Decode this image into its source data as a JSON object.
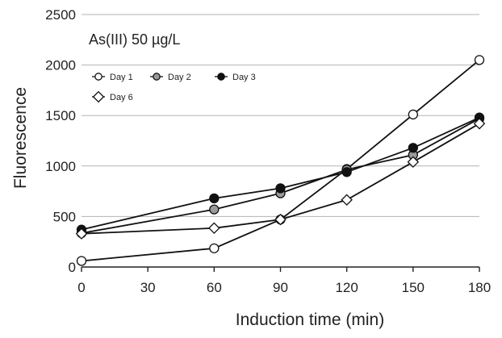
{
  "chart_data": {
    "type": "line",
    "title": "",
    "annotation": "As(III) 50 µg/L",
    "xlabel": "Induction time (min)",
    "ylabel": "Fluorescence",
    "xlim": [
      0,
      180
    ],
    "ylim": [
      0,
      2500
    ],
    "x": [
      0,
      60,
      90,
      120,
      150,
      180
    ],
    "xticks": [
      "0",
      "30",
      "60",
      "90",
      "120",
      "150",
      "180"
    ],
    "yticks": [
      "0",
      "500",
      "1000",
      "1500",
      "2000",
      "2500"
    ],
    "grid": "horizontal",
    "legend_position": "top-left",
    "series": [
      {
        "name": "Day 1",
        "marker": "circle-open",
        "marker_fill": "#ffffff",
        "values": [
          60,
          185,
          470,
          970,
          1510,
          2050
        ]
      },
      {
        "name": "Day 2",
        "marker": "circle-gray",
        "marker_fill": "#9a9a9a",
        "values": [
          335,
          570,
          730,
          965,
          1110,
          1470
        ]
      },
      {
        "name": "Day 3",
        "marker": "circle-filled",
        "marker_fill": "#111111",
        "values": [
          370,
          680,
          780,
          940,
          1180,
          1480
        ]
      },
      {
        "name": "Day 6",
        "marker": "diamond-open",
        "marker_fill": "#ffffff",
        "values": [
          330,
          385,
          470,
          665,
          1040,
          1420
        ]
      }
    ]
  }
}
